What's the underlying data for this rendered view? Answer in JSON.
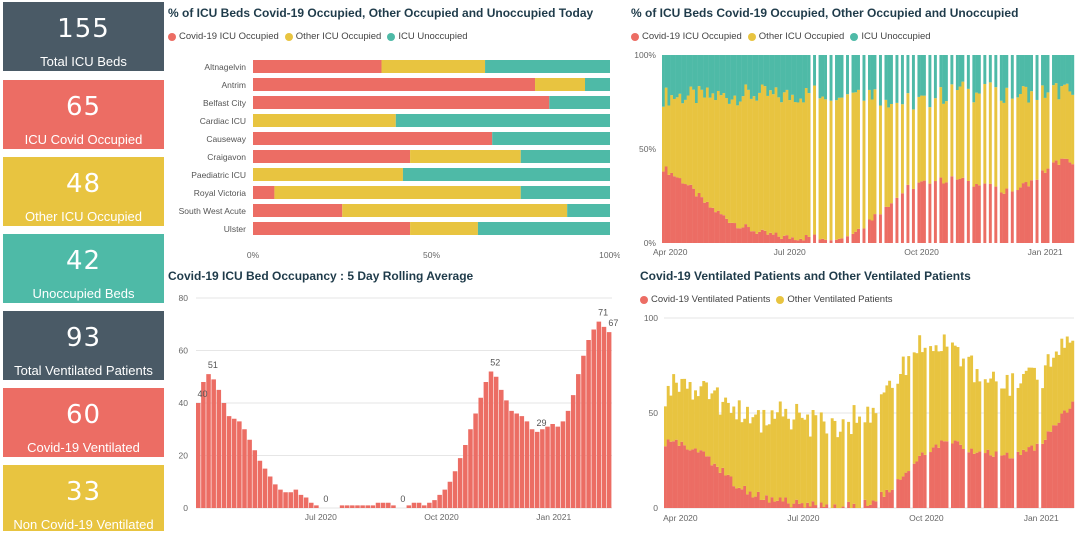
{
  "colors": {
    "covid": "#ec6d64",
    "other": "#e8c440",
    "unocc": "#4ebaa7",
    "dark": "#4a5a66"
  },
  "cards": [
    {
      "value": "155",
      "label": "Total ICU Beds"
    },
    {
      "value": "65",
      "label": "ICU Covid Occupied"
    },
    {
      "value": "48",
      "label": "Other ICU Occupied"
    },
    {
      "value": "42",
      "label": "Unoccupied Beds"
    },
    {
      "value": "93",
      "label": "Total Ventilated Patients"
    },
    {
      "value": "60",
      "label": "Covid-19 Ventilated"
    },
    {
      "value": "33",
      "label": "Non Covid-19 Ventilated"
    }
  ],
  "legend3": [
    "Covid-19 ICU Occupied",
    "Other ICU Occupied",
    "ICU Unoccupied"
  ],
  "legend2": [
    "Covid-19 Ventilated Patients",
    "Other Ventilated Patients"
  ],
  "chart_data": [
    {
      "type": "bar",
      "orientation": "horizontal",
      "stacked": "100%",
      "title": "% of ICU Beds Covid-19 Occupied, Other Occupied and Unoccupied Today",
      "categories": [
        "Altnagelvin",
        "Antrim",
        "Belfast City",
        "Cardiac ICU",
        "Causeway",
        "Craigavon",
        "Paediatric ICU",
        "Royal Victoria",
        "South West Acute",
        "Ulster"
      ],
      "series": [
        {
          "name": "Covid-19 ICU Occupied",
          "values": [
            36,
            79,
            83,
            0,
            67,
            44,
            0,
            6,
            25,
            44
          ]
        },
        {
          "name": "Other ICU Occupied",
          "values": [
            29,
            14,
            0,
            40,
            0,
            31,
            42,
            69,
            63,
            19
          ]
        },
        {
          "name": "ICU Unoccupied",
          "values": [
            35,
            7,
            17,
            60,
            33,
            25,
            58,
            25,
            12,
            37
          ]
        }
      ],
      "xticks": [
        "0%",
        "50%",
        "100%"
      ],
      "xlim": [
        0,
        100
      ]
    },
    {
      "type": "area",
      "stacked": "100%",
      "title": "% of ICU Beds Covid-19 Occupied, Other Occupied and Unoccupied",
      "x_range": [
        "Apr 2020",
        "Feb 2021"
      ],
      "xticks": [
        "Apr 2020",
        "Jul 2020",
        "Oct 2020",
        "Jan 2021"
      ],
      "yticks": [
        "0%",
        "50%",
        "100%"
      ],
      "series": [
        {
          "name": "Covid-19 ICU Occupied",
          "values": [
            40,
            36,
            32,
            26,
            20,
            16,
            12,
            9,
            7,
            5,
            4,
            3,
            3,
            3,
            3,
            3,
            4,
            5,
            9,
            14,
            19,
            24,
            29,
            31,
            33,
            33,
            34,
            33,
            32,
            30,
            29,
            28,
            29,
            32,
            36,
            41,
            44,
            42
          ]
        },
        {
          "name": "Other ICU Occupied",
          "values": [
            38,
            42,
            46,
            52,
            58,
            62,
            66,
            70,
            72,
            74,
            74,
            75,
            76,
            76,
            77,
            77,
            78,
            77,
            72,
            66,
            58,
            52,
            46,
            44,
            43,
            45,
            46,
            48,
            48,
            50,
            51,
            52,
            51,
            48,
            44,
            40,
            37,
            37
          ]
        },
        {
          "name": "ICU Unoccupied",
          "values": [
            22,
            22,
            22,
            22,
            22,
            22,
            22,
            21,
            21,
            21,
            22,
            22,
            21,
            21,
            20,
            20,
            18,
            18,
            19,
            20,
            23,
            24,
            25,
            25,
            24,
            22,
            20,
            19,
            20,
            20,
            20,
            20,
            20,
            20,
            20,
            19,
            19,
            21
          ]
        }
      ]
    },
    {
      "type": "area",
      "title": "Covid-19 ICU Bed Occupancy : 5 Day Rolling Average",
      "x_range": [
        "Mar 2020",
        "Feb 2021"
      ],
      "xticks": [
        "Jul 2020",
        "Oct 2020",
        "Jan 2021"
      ],
      "yticks": [
        "0",
        "20",
        "40",
        "60",
        "80"
      ],
      "ylim": [
        0,
        80
      ],
      "values": [
        40,
        48,
        51,
        49,
        45,
        40,
        35,
        34,
        33,
        30,
        26,
        22,
        18,
        15,
        12,
        9,
        7,
        6,
        6,
        7,
        5,
        4,
        2,
        1,
        0,
        0,
        0,
        0,
        1,
        1,
        1,
        1,
        1,
        1,
        1,
        2,
        2,
        2,
        1,
        0,
        0,
        1,
        2,
        2,
        1,
        2,
        3,
        5,
        7,
        10,
        14,
        19,
        24,
        30,
        36,
        42,
        48,
        52,
        50,
        45,
        41,
        37,
        36,
        35,
        33,
        30,
        29,
        30,
        31,
        32,
        31,
        33,
        37,
        43,
        51,
        58,
        64,
        68,
        71,
        69,
        67
      ],
      "data_labels": [
        {
          "index": 0,
          "text": "40"
        },
        {
          "index": 2,
          "text": "51"
        },
        {
          "index": 24,
          "text": "0"
        },
        {
          "index": 39,
          "text": "0"
        },
        {
          "index": 57,
          "text": "52"
        },
        {
          "index": 66,
          "text": "29"
        },
        {
          "index": 78,
          "text": "71"
        },
        {
          "index": 80,
          "text": "67"
        }
      ]
    },
    {
      "type": "bar",
      "stacked": true,
      "title": "Covid-19 Ventilated Patients and Other Ventilated Patients",
      "x_range": [
        "Apr 2020",
        "Feb 2021"
      ],
      "xticks": [
        "Apr 2020",
        "Jul 2020",
        "Oct 2020",
        "Jan 2021"
      ],
      "yticks": [
        "0",
        "50",
        "100"
      ],
      "ylim": [
        0,
        100
      ],
      "series": [
        {
          "name": "Covid-19 Ventilated Patients",
          "values": [
            35,
            34,
            32,
            30,
            26,
            20,
            15,
            10,
            7,
            5,
            4,
            3,
            2,
            2,
            1,
            1,
            1,
            1,
            2,
            4,
            8,
            14,
            20,
            26,
            30,
            33,
            34,
            32,
            30,
            29,
            28,
            27,
            28,
            30,
            34,
            40,
            48,
            54
          ]
        },
        {
          "name": "Other Ventilated Patients",
          "values": [
            28,
            30,
            32,
            30,
            34,
            36,
            38,
            42,
            43,
            42,
            44,
            43,
            44,
            43,
            44,
            43,
            44,
            45,
            46,
            48,
            50,
            55,
            58,
            60,
            58,
            54,
            48,
            45,
            44,
            42,
            41,
            40,
            39,
            38,
            36,
            35,
            33,
            34
          ]
        }
      ]
    }
  ]
}
